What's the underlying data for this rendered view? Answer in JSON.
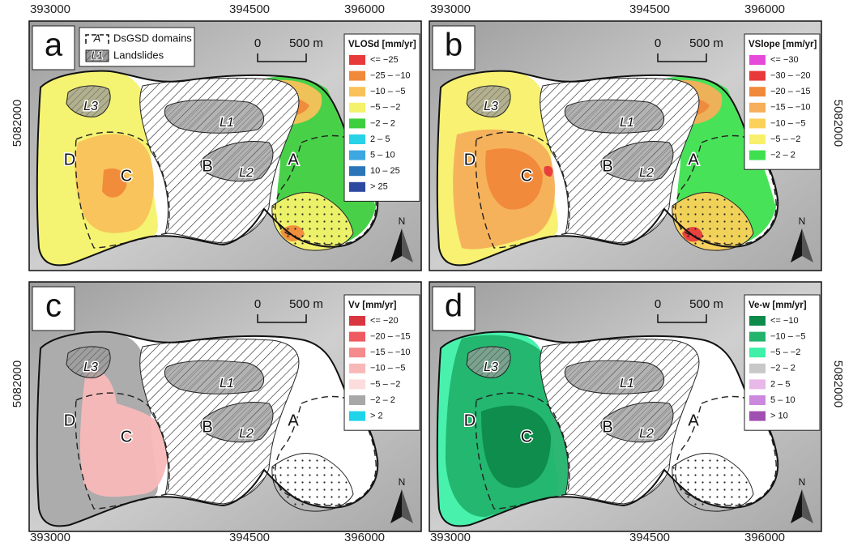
{
  "x_ticks": [
    "393000",
    "394500",
    "396000"
  ],
  "y_ticks": [
    "5082000"
  ],
  "panels": [
    {
      "letter": "a",
      "scale": [
        "0",
        "500 m"
      ],
      "north": "N",
      "key": [
        {
          "symbol": "A",
          "label": "DsGSD domains"
        },
        {
          "symbol": "L1",
          "label": "Landslides"
        }
      ],
      "domains": [
        "A",
        "B",
        "C",
        "D"
      ],
      "landslides": [
        "L1",
        "L2",
        "L3"
      ],
      "legend": {
        "title": "VLOSd [mm/yr]",
        "items": [
          {
            "label": "<= −25",
            "color": "#e8393b"
          },
          {
            "label": "−25 – −10",
            "color": "#f0893a"
          },
          {
            "label": "−10 – −5",
            "color": "#f8c15a"
          },
          {
            "label": "−5 – −2",
            "color": "#f4f26a"
          },
          {
            "label": "−2 – 2",
            "color": "#3ecf3e"
          },
          {
            "label": "2 – 5",
            "color": "#28d3e8"
          },
          {
            "label": "5 – 10",
            "color": "#3ca7e0"
          },
          {
            "label": "10 – 25",
            "color": "#2a75b8"
          },
          {
            "label": "> 25",
            "color": "#2c4aa0"
          }
        ]
      }
    },
    {
      "letter": "b",
      "scale": [
        "0",
        "500 m"
      ],
      "north": "N",
      "domains": [
        "A",
        "B",
        "C",
        "D"
      ],
      "landslides": [
        "L1",
        "L2",
        "L3"
      ],
      "legend": {
        "title": "VSlope [mm/yr]",
        "items": [
          {
            "label": "<= −30",
            "color": "#e64ad8"
          },
          {
            "label": "−30 – −20",
            "color": "#e8393b"
          },
          {
            "label": "−20 – −15",
            "color": "#f0893a"
          },
          {
            "label": "−15 – −10",
            "color": "#f6ae5a"
          },
          {
            "label": "−10 – −5",
            "color": "#fbd15a"
          },
          {
            "label": "−5 – −2",
            "color": "#f8f06a"
          },
          {
            "label": "−2 – 2",
            "color": "#3ee050"
          }
        ]
      }
    },
    {
      "letter": "c",
      "scale": [
        "0",
        "500 m"
      ],
      "north": "N",
      "domains": [
        "A",
        "B",
        "C",
        "D"
      ],
      "landslides": [
        "L1",
        "L2",
        "L3"
      ],
      "legend": {
        "title": "Vv [mm/yr]",
        "items": [
          {
            "label": "<= −20",
            "color": "#d9363f"
          },
          {
            "label": "−20 – −15",
            "color": "#ee5a5f"
          },
          {
            "label": "−15 – −10",
            "color": "#f48a8c"
          },
          {
            "label": "−10 – −5",
            "color": "#f9b8b8"
          },
          {
            "label": "−5 – −2",
            "color": "#fcdcdc"
          },
          {
            "label": "−2 – 2",
            "color": "#a8a8a8"
          },
          {
            "label": "> 2",
            "color": "#1fd3e8"
          }
        ]
      }
    },
    {
      "letter": "d",
      "scale": [
        "0",
        "500 m"
      ],
      "north": "N",
      "domains": [
        "A",
        "B",
        "C",
        "D"
      ],
      "landslides": [
        "L1",
        "L2",
        "L3"
      ],
      "legend": {
        "title": "Ve-w [mm/yr]",
        "items": [
          {
            "label": "<= −10",
            "color": "#0e8a4a"
          },
          {
            "label": "−10 – −5",
            "color": "#22b36c"
          },
          {
            "label": "−5 – −2",
            "color": "#3ef0a8"
          },
          {
            "label": "−2 – 2",
            "color": "#c8c8c8"
          },
          {
            "label": "2 – 5",
            "color": "#e8b8e8"
          },
          {
            "label": "5 – 10",
            "color": "#cc88dd"
          },
          {
            "label": "> 10",
            "color": "#a050b0"
          }
        ]
      }
    }
  ]
}
